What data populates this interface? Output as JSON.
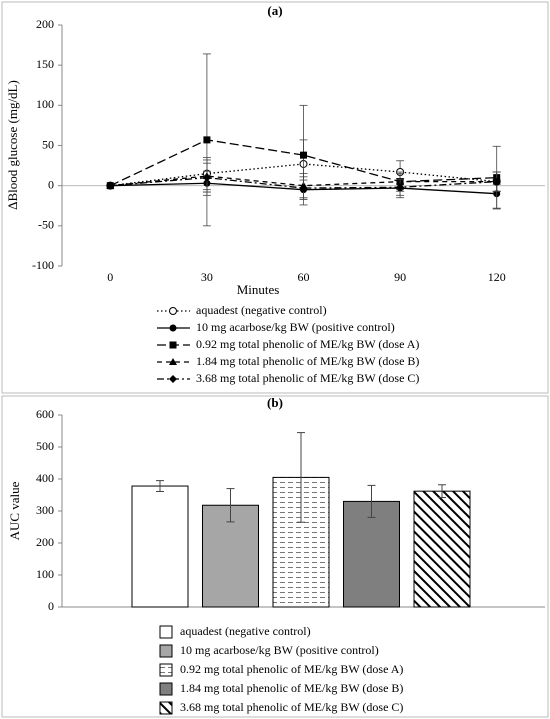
{
  "chart_data": [
    {
      "type": "line",
      "title": "(a)",
      "y_label": "ΔBlood glucose (mg/dL)",
      "x_label": "Minutes",
      "x": [
        0,
        30,
        60,
        90,
        120
      ],
      "xlim": [
        -15,
        135
      ],
      "xticks": [
        0,
        30,
        60,
        90,
        120
      ],
      "ylim": [
        -100,
        200
      ],
      "yticks": [
        -100,
        -50,
        0,
        50,
        100,
        150,
        200
      ],
      "series": [
        {
          "name": "aquadest (negative control)",
          "color": "#000000",
          "dash": "1.5,2.5",
          "marker": "open-circle",
          "values": [
            0,
            15,
            27,
            17,
            5
          ],
          "errors": [
            0,
            20,
            30,
            14,
            12
          ]
        },
        {
          "name": "10 mg acarbose/kg BW (positive control)",
          "color": "#000000",
          "dash": "none",
          "marker": "circle",
          "values": [
            0,
            3,
            -5,
            -3,
            -10
          ],
          "errors": [
            0,
            15,
            12,
            12,
            18
          ]
        },
        {
          "name": "0.92 mg total phenolic of ME/kg BW (dose A)",
          "color": "#000000",
          "dash": "9,4",
          "marker": "square",
          "values": [
            0,
            57,
            38,
            5,
            10
          ],
          "errors": [
            0,
            107,
            62,
            12,
            39
          ]
        },
        {
          "name": "1.84 mg total phenolic of ME/kg BW (dose B)",
          "color": "#000000",
          "dash": "5,4",
          "marker": "triangle",
          "values": [
            0,
            12,
            0,
            5,
            5
          ],
          "errors": [
            0,
            20,
            15,
            10,
            12
          ]
        },
        {
          "name": "3.68 mg total phenolic of ME/kg BW (dose C)",
          "color": "#000000",
          "dash": "7,3,2,3",
          "marker": "diamond",
          "values": [
            0,
            10,
            -3,
            -2,
            5
          ],
          "errors": [
            0,
            18,
            14,
            10,
            12
          ]
        }
      ]
    },
    {
      "type": "bar",
      "title": "(b)",
      "y_label": "AUC value",
      "ylim": [
        0,
        600
      ],
      "yticks": [
        0,
        100,
        200,
        300,
        400,
        500,
        600
      ],
      "series": [
        {
          "name": "aquadest (negative control)",
          "color": "#ffffff",
          "hatch": "none",
          "values": [
            378
          ],
          "errors": [
            17
          ]
        },
        {
          "name": "10 mg acarbose/kg BW (positive control)",
          "color": "#a6a6a6",
          "hatch": "none",
          "values": [
            318
          ],
          "errors": [
            52
          ]
        },
        {
          "name": "0.92 mg total phenolic of ME/kg BW (dose A)",
          "color": "#ffffff",
          "hatch": "horizontal",
          "values": [
            405
          ],
          "errors": [
            140
          ]
        },
        {
          "name": "1.84 mg total phenolic of ME/kg BW (dose B)",
          "color": "#7f7f7f",
          "hatch": "none",
          "values": [
            330
          ],
          "errors": [
            50
          ]
        },
        {
          "name": "3.68 mg total phenolic of ME/kg BW (dose C)",
          "color": "#ffffff",
          "hatch": "diagonal",
          "values": [
            362
          ],
          "errors": [
            20
          ]
        }
      ]
    }
  ]
}
